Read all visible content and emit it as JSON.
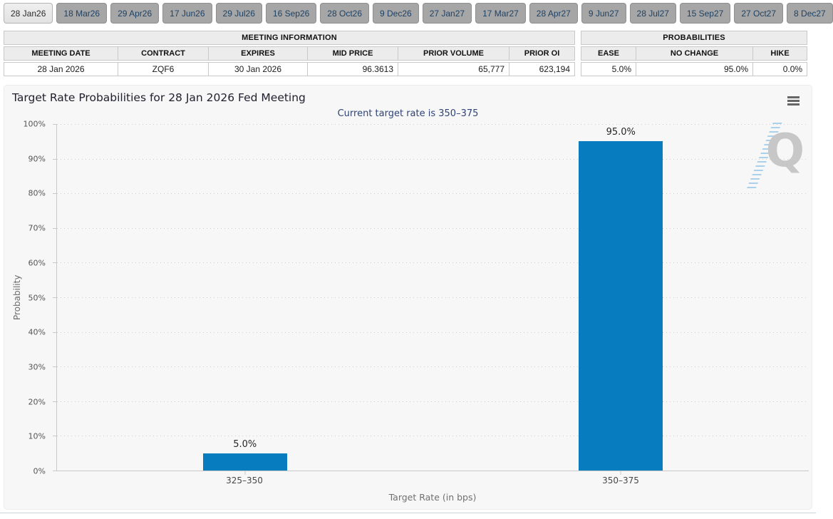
{
  "tabs": [
    {
      "label": "28 Jan26",
      "active": true
    },
    {
      "label": "18 Mar26",
      "active": false
    },
    {
      "label": "29 Apr26",
      "active": false
    },
    {
      "label": "17 Jun26",
      "active": false
    },
    {
      "label": "29 Jul26",
      "active": false
    },
    {
      "label": "16 Sep26",
      "active": false
    },
    {
      "label": "28 Oct26",
      "active": false
    },
    {
      "label": "9 Dec26",
      "active": false
    },
    {
      "label": "27 Jan27",
      "active": false
    },
    {
      "label": "17 Mar27",
      "active": false
    },
    {
      "label": "28 Apr27",
      "active": false
    },
    {
      "label": "9 Jun27",
      "active": false
    },
    {
      "label": "28 Jul27",
      "active": false
    },
    {
      "label": "15 Sep27",
      "active": false
    },
    {
      "label": "27 Oct27",
      "active": false
    },
    {
      "label": "8 Dec27",
      "active": false
    }
  ],
  "meeting_info": {
    "title": "MEETING INFORMATION",
    "columns": [
      "MEETING DATE",
      "CONTRACT",
      "EXPIRES",
      "MID PRICE",
      "PRIOR VOLUME",
      "PRIOR OI"
    ],
    "row": [
      "28 Jan 2026",
      "ZQF6",
      "30 Jan 2026",
      "96.3613",
      "65,777",
      "623,194"
    ]
  },
  "probabilities": {
    "title": "PROBABILITIES",
    "columns": [
      "EASE",
      "NO CHANGE",
      "HIKE"
    ],
    "row": [
      "5.0%",
      "95.0%",
      "0.0%"
    ]
  },
  "chart_data": {
    "type": "bar",
    "title": "Target Rate Probabilities for 28 Jan 2026 Fed Meeting",
    "subtitle": "Current target rate is 350–375",
    "categories": [
      "325–350",
      "350–375"
    ],
    "values": [
      5.0,
      95.0
    ],
    "data_labels": [
      "5.0%",
      "95.0%"
    ],
    "xlabel": "Target Rate (in bps)",
    "ylabel": "Probability",
    "ylim": [
      0,
      100
    ],
    "ytick_step": 10,
    "ytick_suffix": "%",
    "grid": true,
    "legend": false,
    "bar_color": "#077dc0",
    "watermark": "Q"
  },
  "colors": {
    "bar": "#077dc0",
    "subtitle_text": "#2e4377",
    "chart_background": "#f7f7f7",
    "active_tab_background": "#e7e7e7",
    "inactive_tab_background": "#a6a6a6",
    "tab_text": "#1e4164"
  }
}
